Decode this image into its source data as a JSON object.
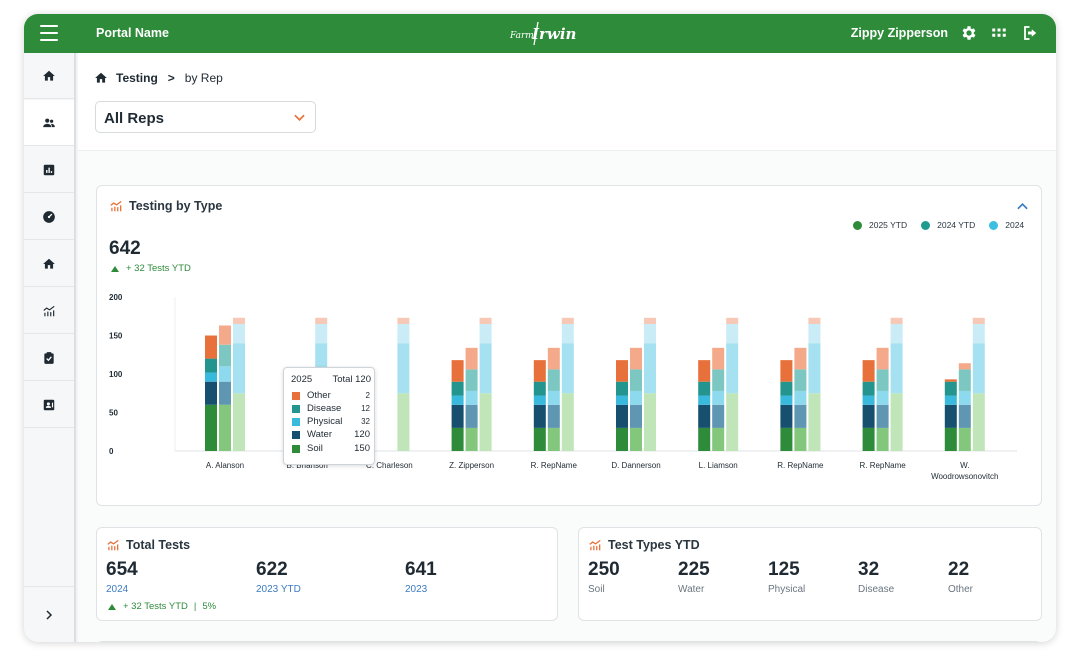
{
  "topbar": {
    "portal_name": "Portal Name",
    "logo_text": "Irwin",
    "user_name": "Zippy Zipperson",
    "brand_color": "#2e8b3a",
    "icons": [
      "settings-icon",
      "apps-grid-icon",
      "logout-icon"
    ]
  },
  "sidebar": {
    "items": [
      {
        "icon": "home-icon"
      },
      {
        "icon": "users-icon"
      },
      {
        "icon": "report-icon"
      },
      {
        "icon": "dashboard-gauge-icon"
      },
      {
        "icon": "home-alt-icon"
      },
      {
        "icon": "trend-chart-icon"
      },
      {
        "icon": "clipboard-check-icon"
      },
      {
        "icon": "contact-card-icon"
      }
    ],
    "expand_icon": "chevron-right-icon"
  },
  "breadcrumb": {
    "home_icon": "home-icon",
    "testing": "Testing",
    "separator": ">",
    "current": "by Rep"
  },
  "rep_select": {
    "value": "All Reps"
  },
  "testing_by_type": {
    "title": "Testing by Type",
    "total": "642",
    "trend": "+ 32 Tests YTD",
    "legend": [
      {
        "label": "2025 YTD",
        "color": "#2e8b3a"
      },
      {
        "label": "2024 YTD",
        "color": "#1f9a90"
      },
      {
        "label": "2024",
        "color": "#3cbfe0"
      }
    ],
    "tooltip": {
      "year": "2025",
      "total_label": "Total 120",
      "rows": [
        {
          "label": "Other",
          "value": "2",
          "color": "#e8703a"
        },
        {
          "label": "Disease",
          "value": "12",
          "color": "#23958e"
        },
        {
          "label": "Physical",
          "value": "32",
          "color": "#39b9dc"
        },
        {
          "label": "Water",
          "value": "120",
          "color": "#17506e"
        },
        {
          "label": "Soil",
          "value": "150",
          "color": "#2e8b3a"
        }
      ]
    }
  },
  "chart_data": {
    "type": "bar",
    "stacked": true,
    "title": "Testing by Type",
    "ylim": [
      0,
      200
    ],
    "yticks": [
      0,
      50,
      100,
      150,
      200
    ],
    "categories": [
      "A. Alanson",
      "B. Brianson",
      "C. Charleson",
      "Z. Zipperson",
      "R. RepName",
      "D. Dannerson",
      "L. Liamson",
      "R. RepName",
      "R. RepName",
      "W. Woodrowsonovitch"
    ],
    "stack_order": [
      "Soil",
      "Water",
      "Physical",
      "Disease",
      "Other"
    ],
    "groups": [
      {
        "name": "2025 YTD",
        "series": [
          {
            "name": "Soil",
            "values": [
              60,
              0,
              0,
              30,
              30,
              30,
              30,
              30,
              30,
              30
            ],
            "color": "#2e8b3a"
          },
          {
            "name": "Water",
            "values": [
              30,
              0,
              0,
              30,
              30,
              30,
              30,
              30,
              30,
              30
            ],
            "color": "#17506e"
          },
          {
            "name": "Physical",
            "values": [
              12,
              0,
              0,
              12,
              12,
              12,
              12,
              12,
              12,
              12
            ],
            "color": "#39b9dc"
          },
          {
            "name": "Disease",
            "values": [
              18,
              0,
              0,
              18,
              18,
              18,
              18,
              18,
              18,
              18
            ],
            "color": "#23958e"
          },
          {
            "name": "Other",
            "values": [
              30,
              0,
              0,
              28,
              28,
              28,
              28,
              28,
              28,
              3
            ],
            "color": "#e8703a"
          }
        ]
      },
      {
        "name": "2024 YTD",
        "series": [
          {
            "name": "Soil",
            "values": [
              60,
              0,
              0,
              30,
              30,
              30,
              30,
              30,
              30,
              30
            ],
            "color": "#82c77b"
          },
          {
            "name": "Water",
            "values": [
              30,
              0,
              0,
              30,
              30,
              30,
              30,
              30,
              30,
              30
            ],
            "color": "#5f96b2"
          },
          {
            "name": "Physical",
            "values": [
              20,
              0,
              0,
              18,
              18,
              18,
              18,
              18,
              18,
              18
            ],
            "color": "#8dd9ee"
          },
          {
            "name": "Disease",
            "values": [
              28,
              0,
              0,
              28,
              28,
              28,
              28,
              28,
              28,
              28
            ],
            "color": "#7cc7c1"
          },
          {
            "name": "Other",
            "values": [
              25,
              0,
              0,
              28,
              28,
              28,
              28,
              28,
              28,
              8
            ],
            "color": "#f4a98a"
          }
        ]
      },
      {
        "name": "2024",
        "series": [
          {
            "name": "Soil",
            "values": [
              75,
              75,
              75,
              75,
              75,
              75,
              75,
              75,
              75,
              75
            ],
            "color": "#bfe5b8"
          },
          {
            "name": "Water",
            "values": [
              0,
              0,
              0,
              0,
              0,
              0,
              0,
              0,
              0,
              0
            ],
            "color": "#a7d0e1"
          },
          {
            "name": "Physical",
            "values": [
              65,
              65,
              65,
              65,
              65,
              65,
              65,
              65,
              65,
              65
            ],
            "color": "#a6e1f1"
          },
          {
            "name": "Disease",
            "values": [
              25,
              25,
              25,
              25,
              25,
              25,
              25,
              25,
              25,
              25
            ],
            "color": "#c9ecf6"
          },
          {
            "name": "Other",
            "values": [
              8,
              8,
              8,
              8,
              8,
              8,
              8,
              8,
              8,
              8
            ],
            "color": "#f6c8b5"
          }
        ]
      }
    ]
  },
  "total_tests": {
    "title": "Total Tests",
    "stats": [
      {
        "value": "654",
        "label": "2024"
      },
      {
        "value": "622",
        "label": "2023 YTD"
      },
      {
        "value": "641",
        "label": "2023"
      }
    ],
    "trend": "+ 32 Tests YTD",
    "trend_sep": "|",
    "trend_pct": "5%"
  },
  "test_types_ytd": {
    "title": "Test Types YTD",
    "stats": [
      {
        "value": "250",
        "label": "Soil"
      },
      {
        "value": "225",
        "label": "Water"
      },
      {
        "value": "125",
        "label": "Physical"
      },
      {
        "value": "32",
        "label": "Disease"
      },
      {
        "value": "22",
        "label": "Other"
      }
    ]
  }
}
